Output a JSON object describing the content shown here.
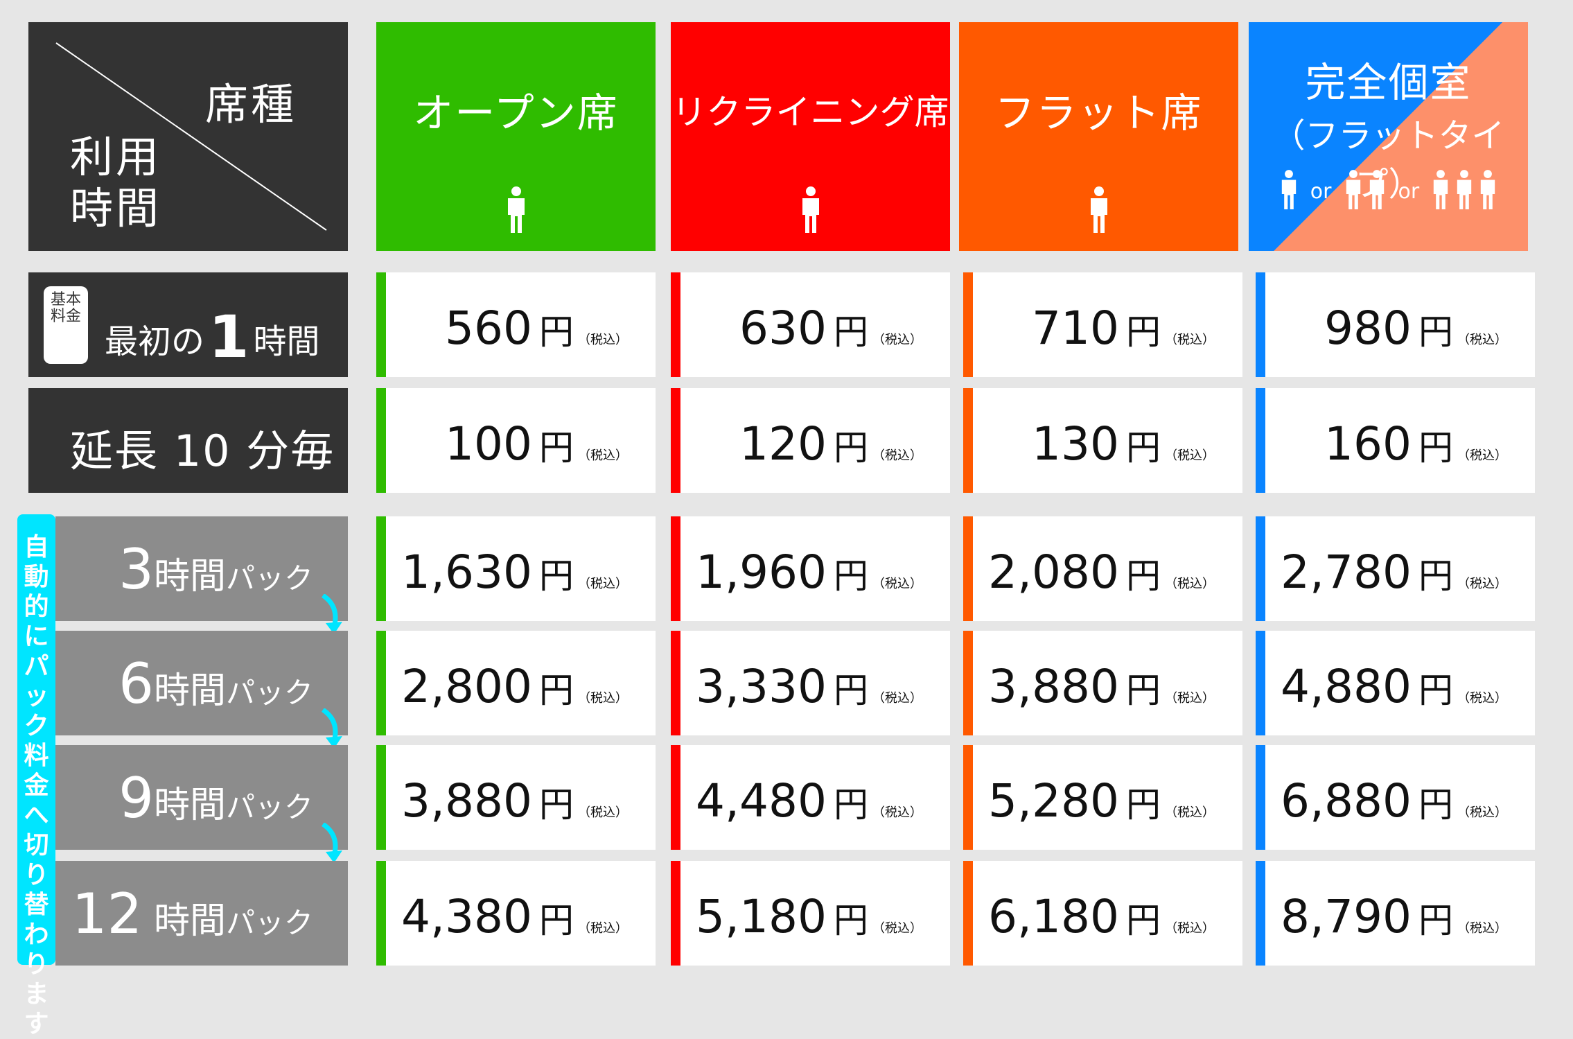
{
  "corner": {
    "seat_type": "席種",
    "usage_time": "利用時間"
  },
  "seats": {
    "open": {
      "name": "オープン席"
    },
    "reclining": {
      "name": "リクライニング席"
    },
    "flat": {
      "name": "フラット席"
    },
    "private": {
      "name": "完全個室",
      "sub": "（フラットタイプ）",
      "or1": "or",
      "or2": "or"
    }
  },
  "rows": {
    "first": {
      "badge": "基本料金",
      "pre": "最初の",
      "num": "1",
      "post": "時間"
    },
    "extension": {
      "label": "延長 10 分毎"
    },
    "p3": {
      "num": "3",
      "unit": "時間",
      "pack": "パック"
    },
    "p6": {
      "num": "6",
      "unit": "時間",
      "pack": "パック"
    },
    "p9": {
      "num": "9",
      "unit": "時間",
      "pack": "パック"
    },
    "p12": {
      "num": "12",
      "unit": " 時間",
      "pack": "パック"
    }
  },
  "auto_switch": "自動的にパック料金へ切り替わります",
  "yen": "円",
  "tax": "（税込）",
  "prices": {
    "first": {
      "open": "560",
      "reclining": "630",
      "flat": "710",
      "private": "980"
    },
    "extension": {
      "open": "100",
      "reclining": "120",
      "flat": "130",
      "private": "160"
    },
    "p3": {
      "open": "1,630",
      "reclining": "1,960",
      "flat": "2,080",
      "private": "2,780"
    },
    "p6": {
      "open": "2,800",
      "reclining": "3,330",
      "flat": "3,880",
      "private": "4,880"
    },
    "p9": {
      "open": "3,880",
      "reclining": "4,480",
      "flat": "5,280",
      "private": "6,880"
    },
    "p12": {
      "open": "4,380",
      "reclining": "5,180",
      "flat": "6,180",
      "private": "8,790"
    }
  },
  "colors": {
    "open": "#2fbc00",
    "reclining": "#ff0000",
    "flat": "#ff5900",
    "private": "#0a84ff",
    "private_accent": "#fd906a",
    "label_dark": "#333333",
    "label_gray": "#8c8c8c",
    "auto_bar": "#00e5ff"
  }
}
